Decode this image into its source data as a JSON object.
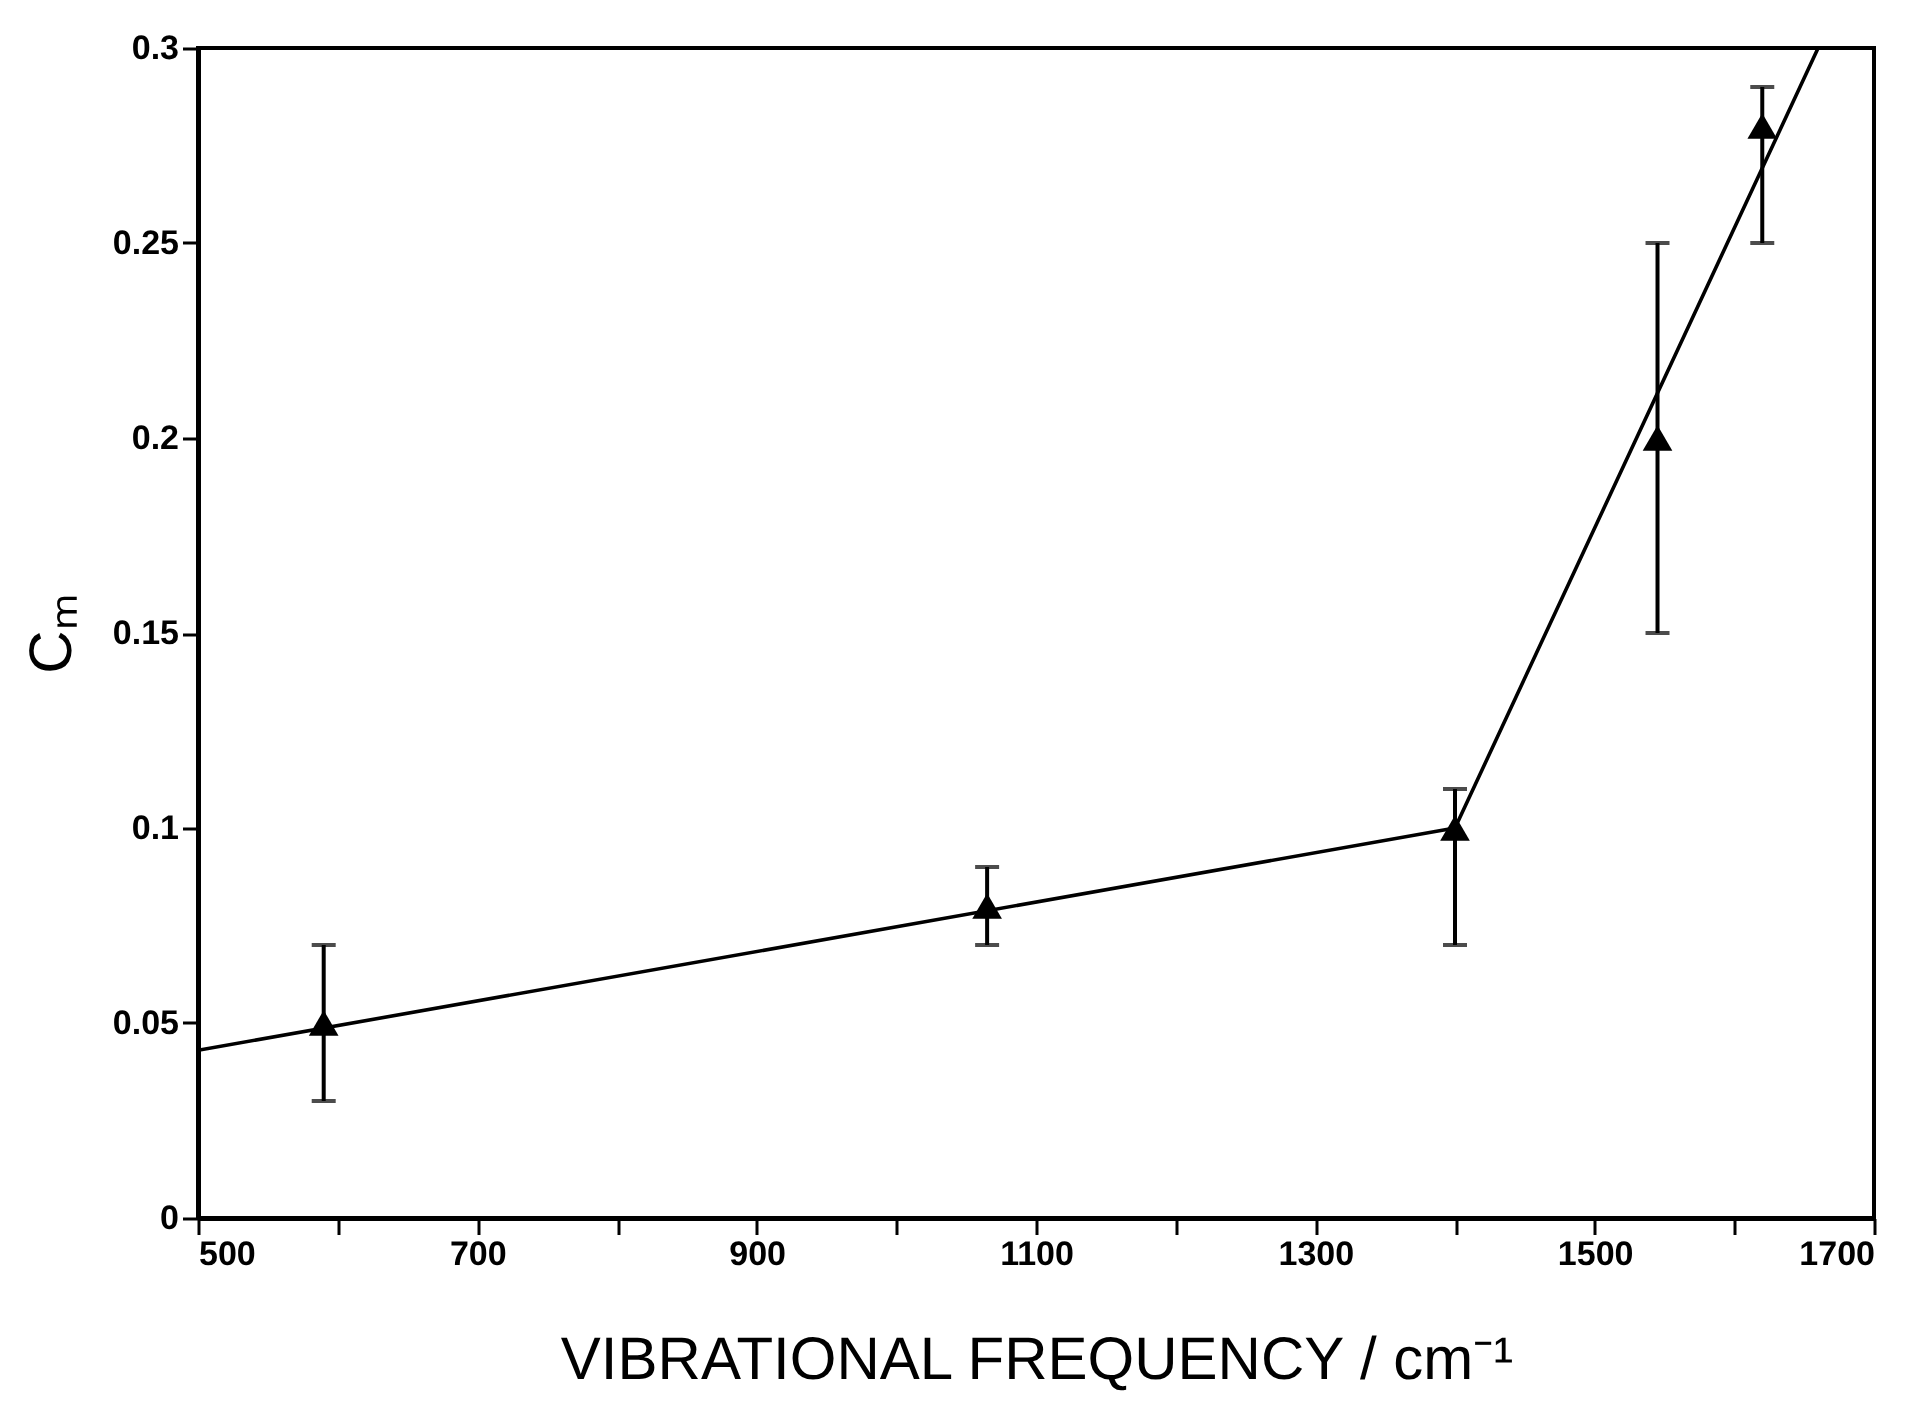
{
  "chart_data": {
    "type": "scatter",
    "xlabel": "VIBRATIONAL  FREQUENCY / cm⁻¹",
    "ylabel": "Cₘ",
    "xlim": [
      500,
      1700
    ],
    "ylim": [
      0,
      0.3
    ],
    "xticks": [
      500,
      {
        "value": 600,
        "label": null
      },
      700,
      {
        "value": 800,
        "label": null
      },
      900,
      {
        "value": 1000,
        "label": null
      },
      1100,
      {
        "value": 1200,
        "label": null
      },
      1300,
      {
        "value": 1400,
        "label": null
      },
      1500,
      {
        "value": 1600,
        "label": null
      },
      1700
    ],
    "yticks": [
      0,
      0.05,
      0.1,
      0.15,
      0.2,
      0.25,
      0.3
    ],
    "grid": false,
    "series": [
      {
        "color": "#000000",
        "marker": "triangle",
        "x": [
          590,
          1065,
          1400,
          1545,
          1620
        ],
        "values": [
          0.05,
          0.08,
          0.1,
          0.2,
          0.28
        ],
        "errors": [
          [
            0.03,
            0.07
          ],
          [
            0.07,
            0.09
          ],
          [
            0.07,
            0.11
          ],
          [
            0.15,
            0.25
          ],
          [
            0.25,
            0.29
          ]
        ]
      },
      {
        "type": "line",
        "color": "#000000",
        "line_style": "solid",
        "marker": "none",
        "x": [
          500,
          1400,
          1660
        ],
        "values": [
          0.043,
          0.1,
          0.3
        ]
      }
    ]
  }
}
